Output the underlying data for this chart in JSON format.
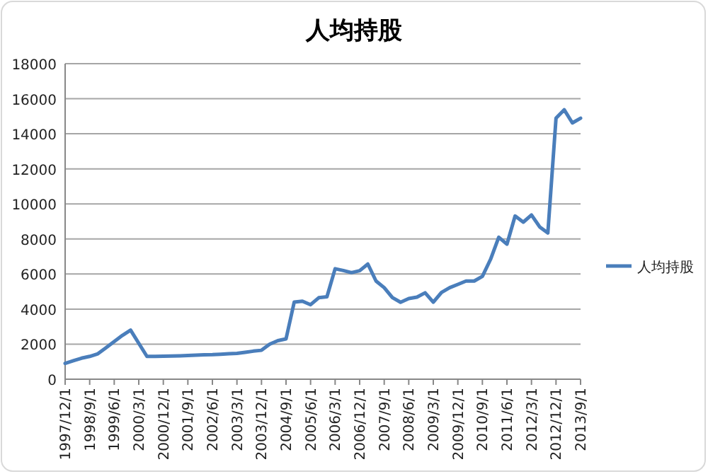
{
  "chart_data": {
    "type": "line",
    "title": "人均持股",
    "categories": [
      "1997/12/1",
      null,
      null,
      "1998/9/1",
      null,
      null,
      "1999/6/1",
      null,
      null,
      "2000/3/1",
      null,
      null,
      "2000/12/1",
      null,
      null,
      "2001/9/1",
      null,
      null,
      "2002/6/1",
      null,
      null,
      "2003/3/1",
      null,
      null,
      "2003/12/1",
      null,
      null,
      "2004/9/1",
      null,
      null,
      "2005/6/1",
      null,
      null,
      "2006/3/1",
      null,
      null,
      "2006/12/1",
      null,
      null,
      "2007/9/1",
      null,
      null,
      "2008/6/1",
      null,
      null,
      "2009/3/1",
      null,
      null,
      "2009/12/1",
      null,
      null,
      "2010/9/1",
      null,
      null,
      "2011/6/1",
      null,
      null,
      "2012/3/1",
      null,
      null,
      "2012/12/1",
      null,
      null,
      "2013/9/1"
    ],
    "series": [
      {
        "name": "人均持股",
        "color": "#4a7ebb",
        "values": [
          900,
          1050,
          1200,
          1300,
          1450,
          1800,
          2150,
          2500,
          2800,
          2050,
          1300,
          1300,
          1310,
          1320,
          1330,
          1350,
          1370,
          1390,
          1400,
          1420,
          1450,
          1470,
          1530,
          1600,
          1650,
          2000,
          2200,
          2300,
          4400,
          4450,
          4250,
          4650,
          4700,
          6300,
          6200,
          6080,
          6190,
          6570,
          5600,
          5220,
          4660,
          4390,
          4600,
          4680,
          4930,
          4390,
          4950,
          5220,
          5410,
          5600,
          5600,
          5870,
          6840,
          8100,
          7700,
          9310,
          8960,
          9370,
          8690,
          8340,
          14890,
          15370,
          14620,
          14890
        ]
      }
    ],
    "ylim": [
      0,
      18000
    ],
    "yticks": [
      0,
      2000,
      4000,
      6000,
      8000,
      10000,
      12000,
      14000,
      16000,
      18000
    ],
    "grid": "y",
    "legend": "right"
  }
}
